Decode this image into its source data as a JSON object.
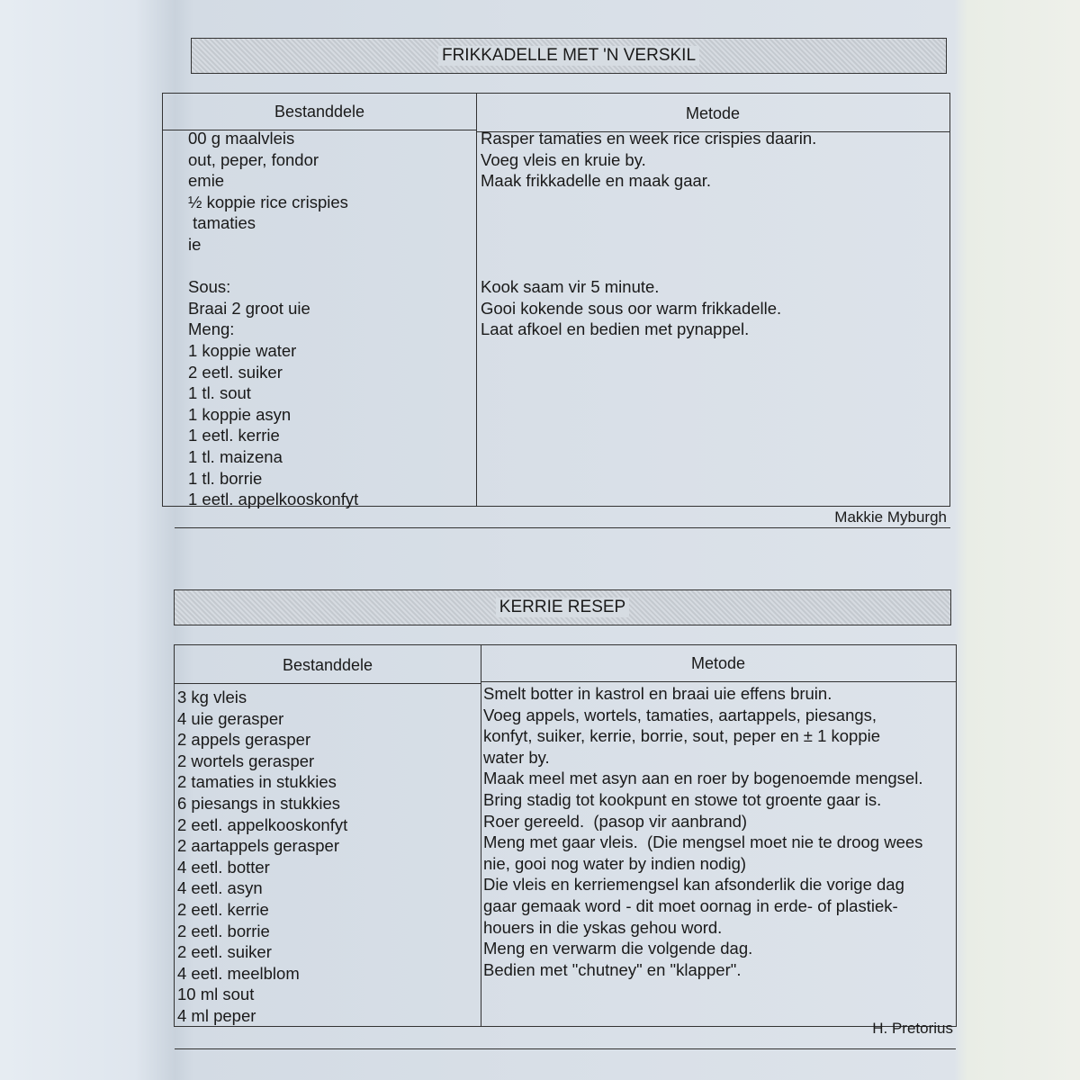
{
  "recipes": [
    {
      "title": "FRIKKADELLE MET 'N VERSKIL",
      "headers": {
        "ingredients": "Bestanddele",
        "method": "Metode"
      },
      "ingredients": [
        "00 g maalvleis",
        "out, peper, fondor",
        "emie",
        "½ koppie rice crispies",
        " tamaties",
        "ie",
        "",
        "Sous:",
        "Braai 2 groot uie",
        "Meng:",
        "1 koppie water",
        "2 eetl. suiker",
        "1 tl. sout",
        "1 koppie asyn",
        "1 eetl. kerrie",
        "1 tl. maizena",
        "1 tl. borrie",
        "1 eetl. appelkooskonfyt"
      ],
      "method": [
        "Rasper tamaties en week rice crispies daarin.",
        "Voeg vleis en kruie by.",
        "Maak frikkadelle en maak gaar.",
        "",
        "",
        "",
        "",
        "Kook saam vir 5 minute.",
        "Gooi kokende sous oor warm frikkadelle.",
        "Laat afkoel en bedien met pynappel."
      ],
      "author": "Makkie Myburgh"
    },
    {
      "title": "KERRIE RESEP",
      "headers": {
        "ingredients": "Bestanddele",
        "method": "Metode"
      },
      "ingredients": [
        "3 kg vleis",
        "4 uie gerasper",
        "2 appels gerasper",
        "2 wortels gerasper",
        "2 tamaties in stukkies",
        "6 piesangs in stukkies",
        "2 eetl. appelkooskonfyt",
        "2 aartappels gerasper",
        "4 eetl. botter",
        "4 eetl. asyn",
        "2 eetl. kerrie",
        "2 eetl. borrie",
        "2 eetl. suiker",
        "4 eetl. meelblom",
        "10 ml sout",
        "4 ml peper"
      ],
      "method": [
        "Smelt botter in kastrol en braai uie effens bruin.",
        "Voeg appels, wortels, tamaties, aartappels, piesangs,",
        "konfyt, suiker, kerrie, borrie, sout, peper en ± 1 koppie",
        "water by.",
        "Maak meel met asyn aan en roer by bogenoemde mengsel.",
        "Bring stadig tot kookpunt en stowe tot groente gaar is.",
        "Roer gereeld.  (pasop vir aanbrand)",
        "Meng met gaar vleis.  (Die mengsel moet nie te droog wees",
        "nie, gooi nog water by indien nodig)",
        "Die vleis en kerriemengsel kan afsonderlik die vorige dag",
        "gaar gemaak word - dit moet oornag in erde- of plastiek-",
        "houers in die yskas gehou word.",
        "Meng en verwarm die volgende dag.",
        "Bedien met \"chutney\" en \"klapper\"."
      ],
      "author": "H. Pretorius"
    }
  ]
}
